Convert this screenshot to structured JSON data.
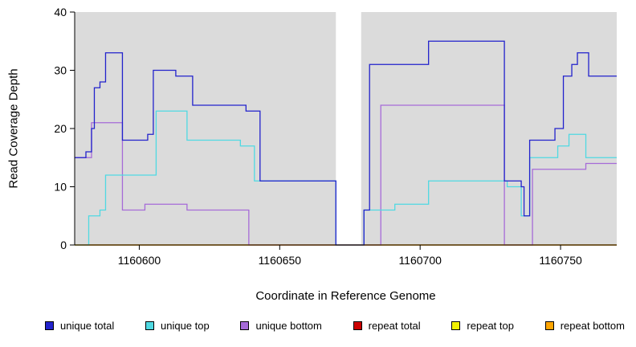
{
  "chart_data": {
    "type": "line",
    "step": true,
    "title": "",
    "xlabel": "Coordinate in Reference Genome",
    "ylabel": "Read Coverage Depth",
    "xlim": [
      1160577,
      1160770
    ],
    "ylim": [
      0,
      40
    ],
    "xticks": [
      1160600,
      1160650,
      1160700,
      1160750
    ],
    "yticks": [
      0,
      10,
      20,
      30,
      40
    ],
    "panel_color": "#DBDBDB",
    "gap_color": "#FFFFFF",
    "axis_color": "#000000",
    "gap_region": [
      1160670,
      1160679
    ],
    "legend_position": "bottom",
    "grid": false,
    "series": [
      {
        "name": "unique total",
        "color": "#2222CC",
        "points": [
          [
            1160577,
            15
          ],
          [
            1160581,
            16
          ],
          [
            1160583,
            20
          ],
          [
            1160584,
            27
          ],
          [
            1160586,
            28
          ],
          [
            1160588,
            33
          ],
          [
            1160594,
            18
          ],
          [
            1160603,
            19
          ],
          [
            1160605,
            30
          ],
          [
            1160613,
            29
          ],
          [
            1160619,
            24
          ],
          [
            1160638,
            23
          ],
          [
            1160643,
            11
          ],
          [
            1160670,
            0
          ],
          [
            1160680,
            6
          ],
          [
            1160682,
            31
          ],
          [
            1160703,
            35
          ],
          [
            1160730,
            11
          ],
          [
            1160736,
            10
          ],
          [
            1160737,
            5
          ],
          [
            1160739,
            18
          ],
          [
            1160748,
            20
          ],
          [
            1160751,
            29
          ],
          [
            1160754,
            31
          ],
          [
            1160756,
            33
          ],
          [
            1160760,
            29
          ]
        ]
      },
      {
        "name": "unique top",
        "color": "#4FD9E2",
        "points": [
          [
            1160577,
            0
          ],
          [
            1160582,
            5
          ],
          [
            1160586,
            6
          ],
          [
            1160588,
            12
          ],
          [
            1160606,
            23
          ],
          [
            1160617,
            18
          ],
          [
            1160636,
            17
          ],
          [
            1160641,
            11
          ],
          [
            1160670,
            0
          ],
          [
            1160680,
            6
          ],
          [
            1160691,
            7
          ],
          [
            1160703,
            11
          ],
          [
            1160731,
            10
          ],
          [
            1160736,
            5
          ],
          [
            1160739,
            15
          ],
          [
            1160749,
            17
          ],
          [
            1160753,
            19
          ],
          [
            1160759,
            15
          ]
        ]
      },
      {
        "name": "unique bottom",
        "color": "#A66BD8",
        "points": [
          [
            1160577,
            15
          ],
          [
            1160583,
            21
          ],
          [
            1160594,
            6
          ],
          [
            1160602,
            7
          ],
          [
            1160617,
            6
          ],
          [
            1160639,
            0
          ],
          [
            1160686,
            24
          ],
          [
            1160730,
            0
          ],
          [
            1160740,
            13
          ],
          [
            1160759,
            14
          ]
        ]
      },
      {
        "name": "repeat total",
        "color": "#CC0000",
        "points": [
          [
            1160577,
            0
          ]
        ]
      },
      {
        "name": "repeat top",
        "color": "#F2F200",
        "points": [
          [
            1160577,
            0
          ]
        ]
      },
      {
        "name": "repeat bottom",
        "color": "#FFA500",
        "points": [
          [
            1160577,
            0
          ]
        ]
      }
    ]
  }
}
